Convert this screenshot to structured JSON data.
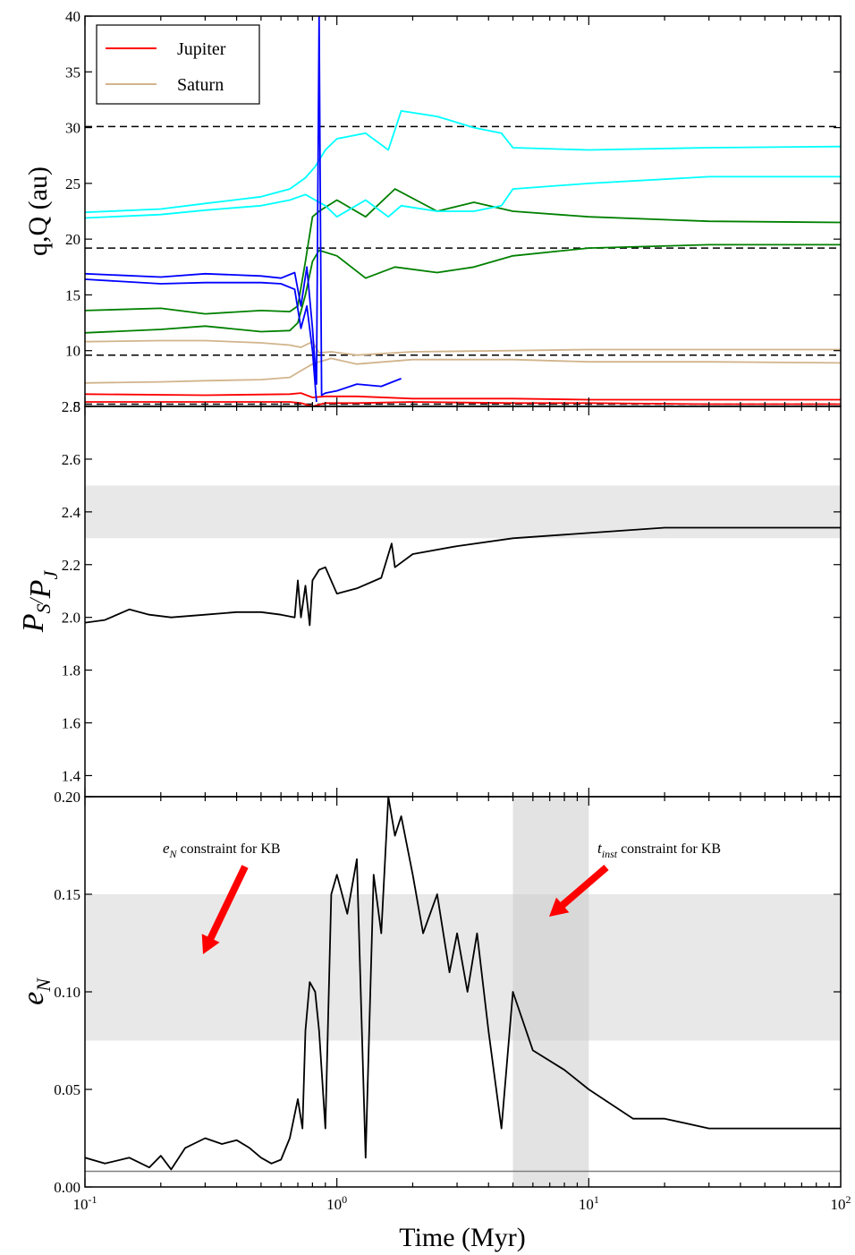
{
  "chart_data": [
    {
      "type": "line",
      "panel": "top",
      "ylabel": "q,Q (au)",
      "ylim": [
        5,
        40
      ],
      "xscale": "log",
      "xlim": [
        0.1,
        100
      ],
      "yticks": [
        5,
        10,
        15,
        20,
        25,
        30,
        35,
        40
      ],
      "legend": {
        "placement": "top-left",
        "entries": [
          {
            "label": "Jupiter",
            "color": "#ff0000"
          },
          {
            "label": "Saturn",
            "color": "#d2b48c"
          }
        ]
      },
      "reference_lines": {
        "style": "dashed",
        "color": "#000000",
        "y": [
          5.2,
          9.6,
          19.2,
          30.1
        ]
      },
      "series": [
        {
          "color": "#ff0000",
          "x": [
            0.1,
            0.3,
            0.65,
            0.72,
            0.8,
            0.9,
            1.2,
            2,
            5,
            10,
            30,
            100
          ],
          "y": [
            6.1,
            6.0,
            6.1,
            6.2,
            5.8,
            5.9,
            5.9,
            5.7,
            5.7,
            5.6,
            5.6,
            5.6
          ]
        },
        {
          "color": "#ff0000",
          "x": [
            0.1,
            0.3,
            0.65,
            0.72,
            0.8,
            0.9,
            1.2,
            2,
            5,
            10,
            30,
            100
          ],
          "y": [
            5.4,
            5.4,
            5.4,
            5.3,
            5.0,
            5.3,
            5.3,
            5.4,
            5.3,
            5.3,
            5.2,
            5.2
          ]
        },
        {
          "color": "#d2b48c",
          "x": [
            0.1,
            0.2,
            0.3,
            0.5,
            0.65,
            0.72,
            0.8,
            0.85,
            0.95,
            1.2,
            2,
            5,
            10,
            30,
            100
          ],
          "y": [
            10.8,
            10.9,
            10.9,
            10.7,
            10.5,
            10.3,
            10.8,
            9.8,
            9.9,
            9.6,
            9.9,
            10.0,
            10.1,
            10.1,
            10.1
          ]
        },
        {
          "color": "#d2b48c",
          "x": [
            0.1,
            0.2,
            0.3,
            0.5,
            0.65,
            0.72,
            0.8,
            0.85,
            0.95,
            1.2,
            2,
            5,
            10,
            30,
            100
          ],
          "y": [
            7.1,
            7.2,
            7.3,
            7.4,
            7.6,
            8.2,
            8.8,
            9.0,
            9.3,
            8.8,
            9.2,
            9.2,
            9.0,
            9.0,
            8.9
          ]
        },
        {
          "color": "#008000",
          "x": [
            0.1,
            0.2,
            0.3,
            0.5,
            0.65,
            0.7,
            0.75,
            0.8,
            0.85,
            1.0,
            1.3,
            1.7,
            2.5,
            3.5,
            5,
            10,
            30,
            100
          ],
          "y": [
            13.6,
            13.8,
            13.3,
            13.6,
            13.5,
            14.0,
            18.0,
            22.0,
            22.5,
            23.5,
            22.0,
            24.5,
            22.5,
            23.3,
            22.5,
            22.0,
            21.6,
            21.5
          ]
        },
        {
          "color": "#008000",
          "x": [
            0.1,
            0.2,
            0.3,
            0.5,
            0.65,
            0.7,
            0.75,
            0.8,
            0.85,
            1.0,
            1.3,
            1.7,
            2.5,
            3.5,
            5,
            10,
            30,
            100
          ],
          "y": [
            11.6,
            11.9,
            12.2,
            11.7,
            11.8,
            12.5,
            15.0,
            18.0,
            19.0,
            18.5,
            16.5,
            17.5,
            17.0,
            17.5,
            18.5,
            19.2,
            19.5,
            19.5
          ]
        },
        {
          "color": "#00ffff",
          "x": [
            0.1,
            0.2,
            0.3,
            0.5,
            0.65,
            0.75,
            0.82,
            0.9,
            1.0,
            1.3,
            1.6,
            1.8,
            2.5,
            3.5,
            4.5,
            5,
            10,
            30,
            100
          ],
          "y": [
            22.4,
            22.7,
            23.2,
            23.8,
            24.5,
            25.5,
            26.5,
            28.0,
            29.0,
            29.5,
            28.0,
            31.5,
            31.0,
            30.0,
            29.5,
            28.2,
            28.0,
            28.2,
            28.3
          ]
        },
        {
          "color": "#00ffff",
          "x": [
            0.1,
            0.2,
            0.3,
            0.5,
            0.65,
            0.75,
            0.82,
            0.9,
            1.0,
            1.3,
            1.6,
            1.8,
            2.5,
            3.5,
            4.5,
            5,
            10,
            30,
            100
          ],
          "y": [
            21.9,
            22.2,
            22.6,
            23.0,
            23.5,
            24.0,
            23.5,
            23.0,
            22.0,
            23.5,
            22.0,
            23.0,
            22.5,
            22.5,
            23.0,
            24.5,
            25.0,
            25.6,
            25.6
          ]
        },
        {
          "color": "#0000ff",
          "x": [
            0.1,
            0.2,
            0.3,
            0.5,
            0.6,
            0.68,
            0.72,
            0.76,
            0.8,
            0.83,
            0.85,
            0.87,
            0.9,
            1.0,
            1.2,
            1.5,
            1.8
          ],
          "y": [
            16.9,
            16.6,
            16.9,
            16.7,
            16.5,
            17.0,
            14.0,
            17.5,
            12.0,
            7.0,
            40.0,
            6.0,
            6.2,
            6.4,
            7.0,
            6.8,
            7.5
          ]
        },
        {
          "color": "#0000ff",
          "x": [
            0.1,
            0.2,
            0.3,
            0.5,
            0.6,
            0.68,
            0.72,
            0.76,
            0.8,
            0.83
          ],
          "y": [
            16.4,
            16.0,
            16.1,
            16.1,
            16.0,
            15.5,
            12.0,
            14.0,
            10.0,
            5.4
          ]
        }
      ]
    },
    {
      "type": "line",
      "panel": "middle",
      "ylabel": "P_S/P_J",
      "ylim": [
        1.32,
        2.8
      ],
      "xscale": "log",
      "xlim": [
        0.1,
        100
      ],
      "yticks": [
        1.4,
        1.6,
        1.8,
        2.0,
        2.2,
        2.4,
        2.6,
        2.8
      ],
      "shaded_band": {
        "y": [
          2.3,
          2.5
        ]
      },
      "series": [
        {
          "color": "#000000",
          "x": [
            0.1,
            0.12,
            0.15,
            0.18,
            0.22,
            0.3,
            0.4,
            0.5,
            0.6,
            0.68,
            0.7,
            0.72,
            0.75,
            0.78,
            0.8,
            0.85,
            0.9,
            1.0,
            1.2,
            1.5,
            1.65,
            1.7,
            2.0,
            3.0,
            5.0,
            10.0,
            20.0,
            50.0,
            100.0
          ],
          "y": [
            1.98,
            1.99,
            2.03,
            2.01,
            2.0,
            2.01,
            2.02,
            2.02,
            2.01,
            2.0,
            2.14,
            2.0,
            2.12,
            1.97,
            2.14,
            2.18,
            2.19,
            2.09,
            2.11,
            2.15,
            2.28,
            2.19,
            2.24,
            2.27,
            2.3,
            2.32,
            2.34,
            2.34,
            2.34
          ]
        }
      ]
    },
    {
      "type": "line",
      "panel": "bottom",
      "xlabel": "Time (Myr)",
      "ylabel": "e_N",
      "ylim": [
        0.0,
        0.2
      ],
      "xscale": "log",
      "xlim": [
        0.1,
        100
      ],
      "yticks": [
        0.0,
        0.05,
        0.1,
        0.15,
        0.2
      ],
      "xticks": [
        {
          "base": "10",
          "exp": "-1",
          "value": 0.1
        },
        {
          "base": "10",
          "exp": "0",
          "value": 1
        },
        {
          "base": "10",
          "exp": "1",
          "value": 10
        },
        {
          "base": "10",
          "exp": "2",
          "value": 100
        }
      ],
      "shaded_band": {
        "y": [
          0.075,
          0.15
        ]
      },
      "shaded_x_band": {
        "x": [
          5,
          10
        ]
      },
      "reference_lines": {
        "color": "#808080",
        "y": [
          0.008
        ]
      },
      "annotations": [
        {
          "math": "e",
          "sub": "N",
          "text": " constraint for KB"
        },
        {
          "math": "t",
          "sub": "inst",
          "text": " constraint for KB"
        }
      ],
      "series": [
        {
          "color": "#000000",
          "x": [
            0.1,
            0.12,
            0.15,
            0.18,
            0.2,
            0.22,
            0.25,
            0.3,
            0.35,
            0.4,
            0.45,
            0.5,
            0.55,
            0.6,
            0.65,
            0.7,
            0.73,
            0.75,
            0.78,
            0.82,
            0.85,
            0.9,
            0.95,
            1.0,
            1.1,
            1.2,
            1.3,
            1.4,
            1.5,
            1.6,
            1.7,
            1.8,
            2.0,
            2.2,
            2.5,
            2.8,
            3.0,
            3.3,
            3.6,
            4.0,
            4.5,
            5.0,
            6.0,
            8.0,
            10.0,
            15.0,
            20.0,
            30.0,
            50.0,
            100.0
          ],
          "y": [
            0.015,
            0.012,
            0.015,
            0.01,
            0.016,
            0.009,
            0.02,
            0.025,
            0.022,
            0.024,
            0.02,
            0.015,
            0.012,
            0.014,
            0.025,
            0.045,
            0.03,
            0.08,
            0.105,
            0.1,
            0.08,
            0.03,
            0.15,
            0.16,
            0.14,
            0.168,
            0.015,
            0.16,
            0.13,
            0.2,
            0.18,
            0.19,
            0.16,
            0.13,
            0.15,
            0.11,
            0.13,
            0.1,
            0.13,
            0.08,
            0.03,
            0.1,
            0.07,
            0.06,
            0.05,
            0.035,
            0.035,
            0.03,
            0.03,
            0.03
          ]
        }
      ]
    }
  ]
}
